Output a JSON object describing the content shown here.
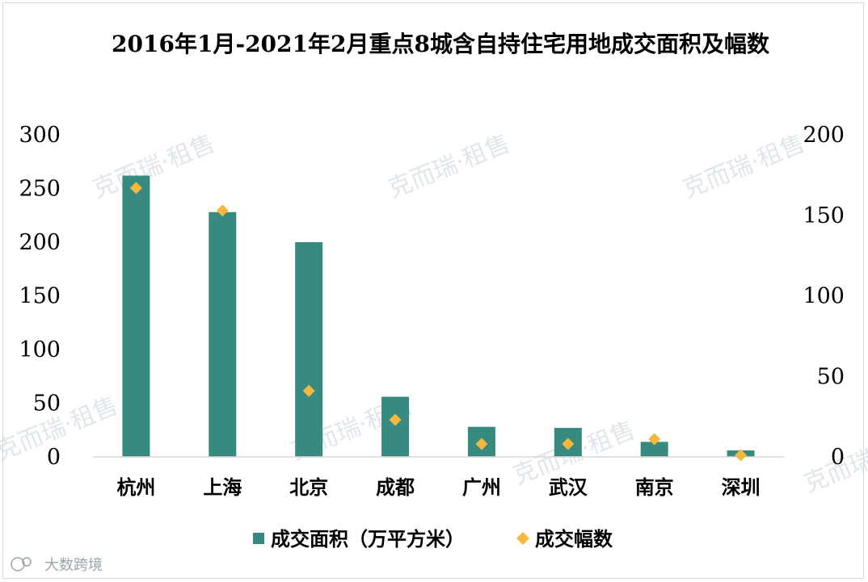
{
  "chart_data": {
    "type": "bar",
    "title": "2016年1月-2021年2月重点8城含自持住宅用地成交面积及幅数",
    "categories": [
      "杭州",
      "上海",
      "北京",
      "成都",
      "广州",
      "武汉",
      "南京",
      "深圳"
    ],
    "series": [
      {
        "name": "成交面积（万平方米）",
        "type": "bar",
        "axis": "left",
        "color": "#378a80",
        "values": [
          262,
          228,
          200,
          56,
          28,
          27,
          14,
          6
        ]
      },
      {
        "name": "成交幅数",
        "type": "scatter",
        "marker": "diamond",
        "axis": "right",
        "color": "#f5b83d",
        "values": [
          167,
          153,
          41,
          23,
          8,
          8,
          11,
          1
        ]
      }
    ],
    "y_left": {
      "ylim": [
        0,
        300
      ],
      "ticks": [
        "0",
        "50",
        "100",
        "150",
        "200",
        "250",
        "300"
      ]
    },
    "y_right": {
      "ylim": [
        0,
        200
      ],
      "ticks": [
        "0",
        "50",
        "100",
        "150",
        "200"
      ]
    },
    "grid": false,
    "legend": "bottom"
  },
  "watermark": {
    "text": "克而瑞·租售"
  },
  "footer_logo": {
    "text": "大数跨境"
  }
}
